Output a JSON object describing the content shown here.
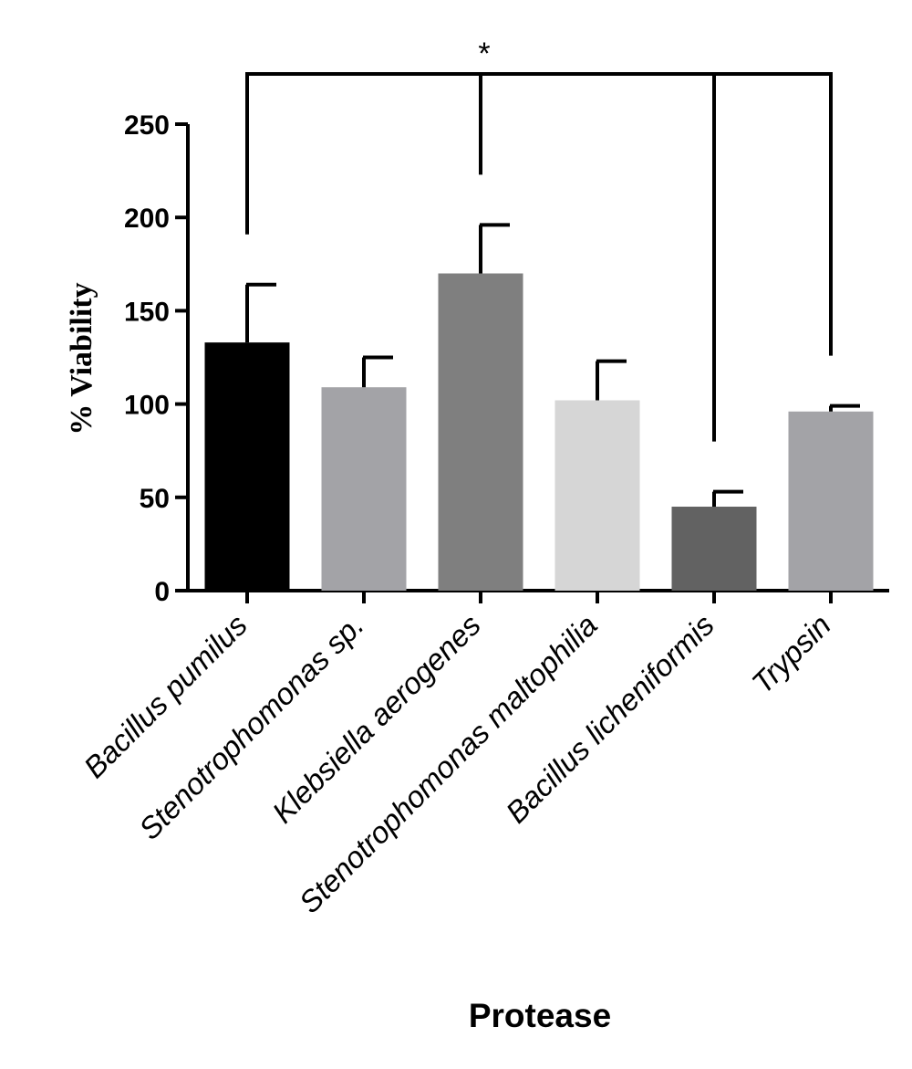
{
  "chart_data": {
    "type": "bar",
    "categories": [
      "Bacillus pumilus",
      "Stenotrophomonas sp.",
      "Klebsiella aerogenes",
      "Stenotrophomonas maltophilia",
      "Bacillus licheniformis",
      "Trypsin"
    ],
    "values": [
      133,
      109,
      170,
      102,
      45,
      96
    ],
    "errors": [
      31,
      16,
      26,
      21,
      8,
      3
    ],
    "colors": [
      "#000000",
      "#a3a3a7",
      "#7f7f7f",
      "#d6d6d6",
      "#626262",
      "#a3a3a7"
    ],
    "xlabel": "Protease",
    "ylabel": "% Viability",
    "ylim": [
      0,
      250
    ],
    "yticks": [
      0,
      50,
      100,
      150,
      200,
      250
    ],
    "grid": false,
    "significance": {
      "label": "*",
      "groups": [
        "Bacillus pumilus",
        "Klebsiella aerogenes",
        "Bacillus licheniformis",
        "Trypsin"
      ]
    }
  }
}
